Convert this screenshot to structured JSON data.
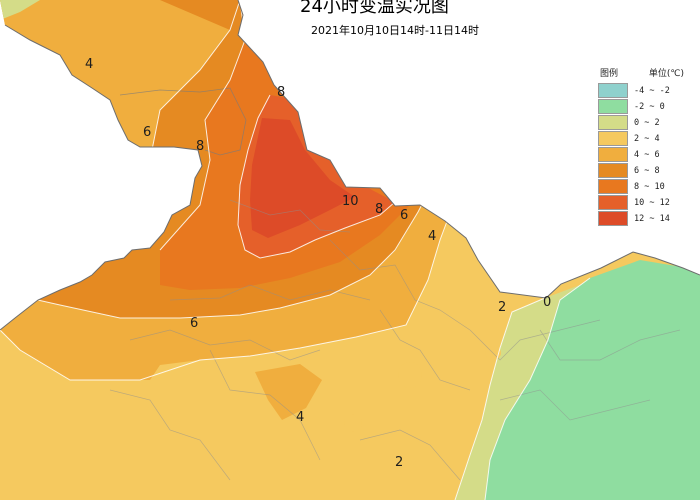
{
  "title": "24小时变温实况图",
  "subtitle": "2021年10月10日14时-11日14时",
  "legend": {
    "heading": "图例",
    "unit": "单位(℃)",
    "items": [
      {
        "range": "-4 ~ -2",
        "color": "#8fd1cd"
      },
      {
        "range": "-2 ~ 0",
        "color": "#8fdda0"
      },
      {
        "range": "0 ~ 2",
        "color": "#d4dc88"
      },
      {
        "range": "2 ~ 4",
        "color": "#f5c95f"
      },
      {
        "range": "4 ~ 6",
        "color": "#f0ae3e"
      },
      {
        "range": "6 ~ 8",
        "color": "#e58a22"
      },
      {
        "range": "8 ~ 10",
        "color": "#e8781f"
      },
      {
        "range": "10 ~ 12",
        "color": "#e5602a"
      },
      {
        "range": "12 ~ 14",
        "color": "#dd4b28"
      }
    ]
  },
  "contours": [
    "4",
    "6",
    "8",
    "8",
    "10",
    "8",
    "6",
    "4",
    "6",
    "4",
    "2",
    "2",
    "0"
  ]
}
